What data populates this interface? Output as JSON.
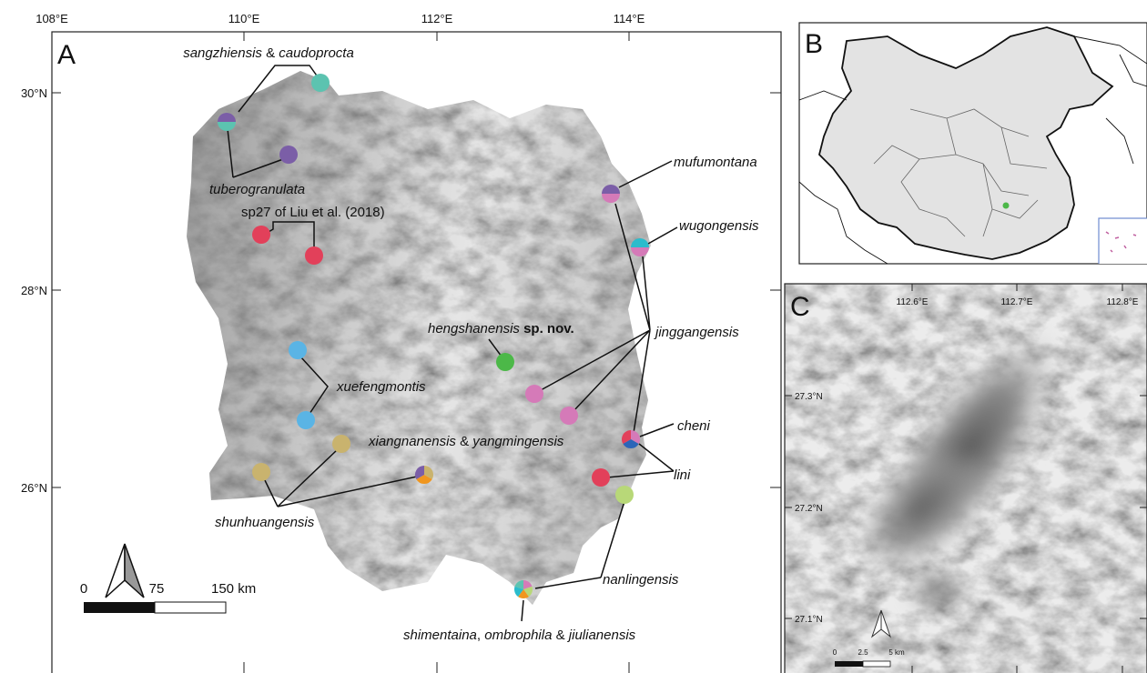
{
  "panel_a": {
    "letter": "A",
    "lon_ticks": [
      "108°E",
      "110°E",
      "112°E",
      "114°E"
    ],
    "lat_ticks": [
      "30°N",
      "28°N",
      "26°N"
    ],
    "labels": [
      {
        "parts": [
          "sangzhiensis",
          " & ",
          "caudoprocta"
        ]
      },
      {
        "parts": [
          "tuberogranulata"
        ]
      },
      {
        "parts": [
          "sp27 of Liu et al. (2018)"
        ]
      },
      {
        "parts": [
          "mufumontana"
        ]
      },
      {
        "parts": [
          "wugongensis"
        ]
      },
      {
        "parts": [
          "hengshanensis",
          " sp. nov."
        ]
      },
      {
        "parts": [
          "jinggangensis"
        ]
      },
      {
        "parts": [
          "xuefengmontis"
        ]
      },
      {
        "parts": [
          "cheni"
        ]
      },
      {
        "parts": [
          "xiangnanensis",
          " & ",
          "yangmingensis"
        ]
      },
      {
        "parts": [
          "lini"
        ]
      },
      {
        "parts": [
          "shunhuangensis"
        ]
      },
      {
        "parts": [
          "nanlingensis"
        ]
      },
      {
        "parts": [
          "shimentaina",
          ", ",
          "ombrophila",
          " & ",
          "jiulianensis"
        ]
      }
    ],
    "scale": [
      "0",
      "75",
      "150 km"
    ]
  },
  "panel_b": {
    "letter": "B"
  },
  "panel_c": {
    "letter": "C",
    "lon_ticks": [
      "112.6°E",
      "112.7°E",
      "112.8°E"
    ],
    "lat_ticks": [
      "27.3°N",
      "27.2°N",
      "27.1°N"
    ],
    "scale": [
      "0",
      "2.5",
      "5 km"
    ]
  }
}
